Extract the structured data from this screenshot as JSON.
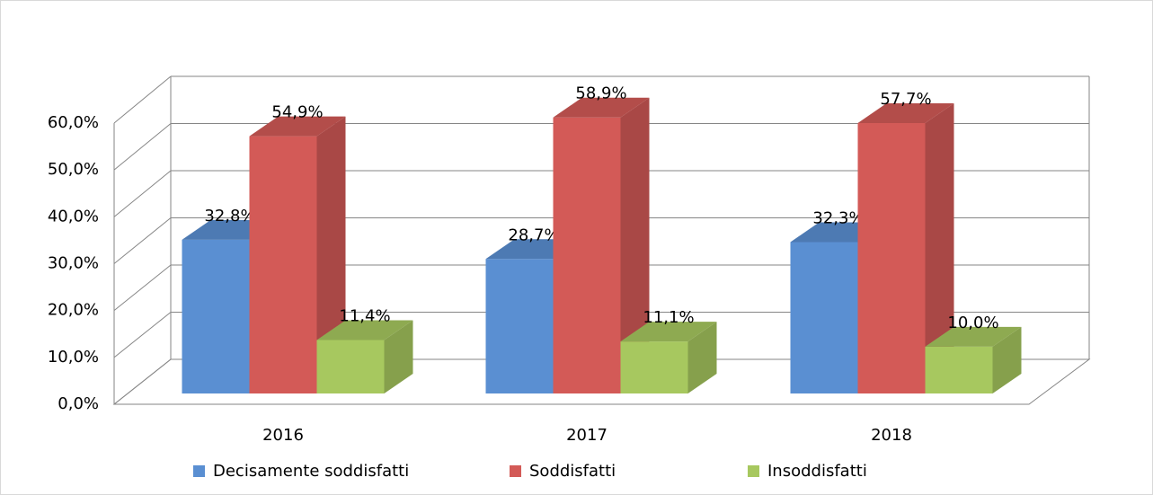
{
  "chart_data": {
    "type": "bar3d",
    "categories": [
      "2016",
      "2017",
      "2018"
    ],
    "series": [
      {
        "name": "Decisamente soddisfatti",
        "color": "#5a8fd2",
        "values": [
          32.8,
          28.7,
          32.3
        ],
        "value_labels": [
          "32,8%",
          "28,7%",
          "32,3%"
        ]
      },
      {
        "name": "Soddisfatti",
        "color": "#d35a57",
        "values": [
          54.9,
          58.9,
          57.7
        ],
        "value_labels": [
          "54,9%",
          "58,9%",
          "57,7%"
        ]
      },
      {
        "name": "Insoddisfatti",
        "color": "#a7c85f",
        "values": [
          11.4,
          11.1,
          10.0
        ],
        "value_labels": [
          "11,4%",
          "11,1%",
          "10,0%"
        ]
      }
    ],
    "ylim": [
      0,
      60
    ],
    "yticks": [
      {
        "value": 0,
        "label": "0,0%"
      },
      {
        "value": 10,
        "label": "10,0%"
      },
      {
        "value": 20,
        "label": "20,0%"
      },
      {
        "value": 30,
        "label": "30,0%"
      },
      {
        "value": 40,
        "label": "40,0%"
      },
      {
        "value": 50,
        "label": "50,0%"
      },
      {
        "value": 60,
        "label": "60,0%"
      }
    ],
    "grid": true,
    "legend": "bottom"
  }
}
